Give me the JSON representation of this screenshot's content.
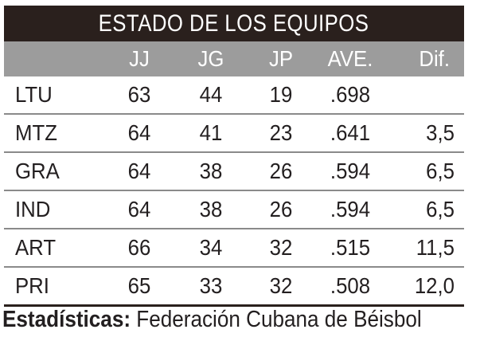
{
  "title": "ESTADO DE LOS EQUIPOS",
  "headers": {
    "team": "",
    "jj": "JJ",
    "jg": "JG",
    "jp": "JP",
    "ave": "AVE.",
    "dif": "Dif."
  },
  "rows": [
    {
      "team": "LTU",
      "jj": "63",
      "jg": "44",
      "jp": "19",
      "ave": ".698",
      "dif": ""
    },
    {
      "team": "MTZ",
      "jj": "64",
      "jg": "41",
      "jp": "23",
      "ave": ".641",
      "dif": "3,5"
    },
    {
      "team": "GRA",
      "jj": "64",
      "jg": "38",
      "jp": "26",
      "ave": ".594",
      "dif": "6,5"
    },
    {
      "team": "IND",
      "jj": "64",
      "jg": "38",
      "jp": "26",
      "ave": ".594",
      "dif": "6,5"
    },
    {
      "team": "ART",
      "jj": "66",
      "jg": "34",
      "jp": "32",
      "ave": ".515",
      "dif": "11,5"
    },
    {
      "team": "PRI",
      "jj": "65",
      "jg": "33",
      "jp": "32",
      "ave": ".508",
      "dif": "12,0"
    }
  ],
  "source": {
    "label": "Estadísticas:",
    "text": " Federación Cubana de Béisbol"
  },
  "colors": {
    "title_bg": "#2a201d",
    "header_bg": "#9c9c9c",
    "row_divider": "#8a8a8a",
    "text": "#231f20"
  }
}
